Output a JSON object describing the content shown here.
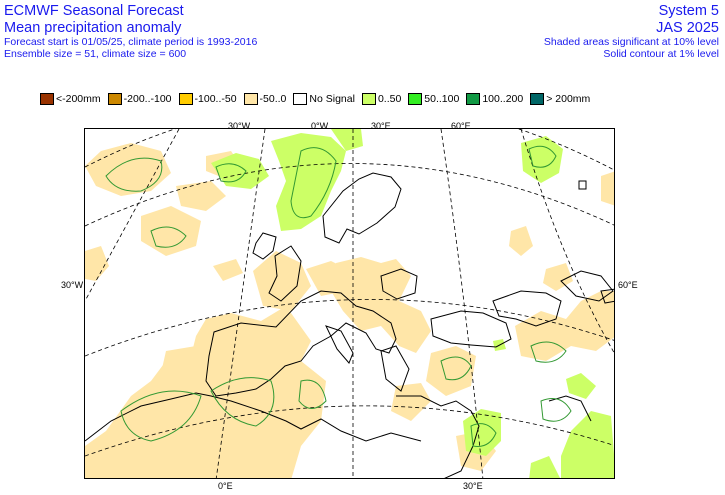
{
  "header": {
    "title": "ECMWF Seasonal Forecast",
    "subtitle": "Mean precipitation anomaly",
    "info_line1": "Forecast start is 01/05/25, climate period is 1993-2016",
    "info_line2": "Ensemble size = 51, climate size = 600",
    "system": "System 5",
    "season": "JAS 2025",
    "sig_line1": "Shaded areas significant at 10% level",
    "sig_line2": "Solid contour at 1% level"
  },
  "legend": [
    {
      "label": "<-200mm",
      "color": "#993300"
    },
    {
      "label": "-200..-100",
      "color": "#cc8800"
    },
    {
      "label": "-100..-50",
      "color": "#ffcc00"
    },
    {
      "label": "-50..0",
      "color": "#ffe6a8"
    },
    {
      "label": "No Signal",
      "color": "#ffffff"
    },
    {
      "label": "0..50",
      "color": "#ccff66"
    },
    {
      "label": "50..100",
      "color": "#33ee22"
    },
    {
      "label": "100..200",
      "color": "#119944"
    },
    {
      "label": "> 200mm",
      "color": "#006666"
    }
  ],
  "coords": {
    "top_30w": "30°W",
    "top_0w": "0°W",
    "top_30e": "30°E",
    "top_60e": "60°E",
    "left_30w": "30°W",
    "right_60e": "60°E",
    "bottom_0e": "0°E",
    "bottom_30e": "30°E"
  },
  "colors": {
    "dry": "#ffe6a8",
    "wet": "#ccff66",
    "contour": "#339933",
    "coast": "#000000",
    "text": "#1a1aee"
  }
}
